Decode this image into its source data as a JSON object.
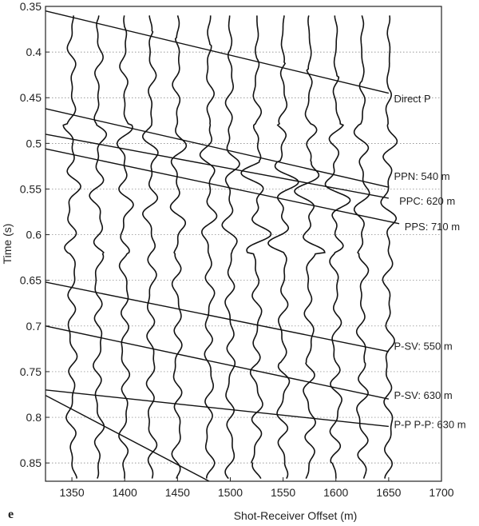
{
  "chart_data": {
    "type": "line",
    "title": "",
    "panel_label": "e",
    "xlabel": "Shot-Receiver Offset (m)",
    "ylabel": "Time (s)",
    "xlim": [
      1325,
      1700
    ],
    "ylim": [
      0.35,
      0.87
    ],
    "y_inverted": true,
    "x_ticks": [
      1350,
      1400,
      1450,
      1500,
      1550,
      1600,
      1650,
      1700
    ],
    "y_ticks": [
      0.35,
      0.4,
      0.45,
      0.5,
      0.55,
      0.6,
      0.65,
      0.7,
      0.75,
      0.8,
      0.85
    ],
    "y_tick_labels": [
      "0.35",
      "0.4",
      "0.45",
      "0.5",
      "0.55",
      "0.6",
      "0.65",
      "0.7",
      "0.75",
      "0.8",
      "0.85"
    ],
    "grid": "horizontal dotted",
    "trace_offsets": [
      1350,
      1375,
      1400,
      1425,
      1450,
      1480,
      1500,
      1525,
      1550,
      1575,
      1600,
      1625,
      1650
    ],
    "annotations": [
      {
        "text": "Direct P",
        "x": 1655,
        "y": 0.455
      },
      {
        "text": "PPN: 540 m",
        "x": 1655,
        "y": 0.54
      },
      {
        "text": "PPC: 620 m",
        "x": 1660,
        "y": 0.567
      },
      {
        "text": "PPS: 710 m",
        "x": 1665,
        "y": 0.595
      },
      {
        "text": "P-SV: 550 m",
        "x": 1655,
        "y": 0.726
      },
      {
        "text": "P-SV: 630 m",
        "x": 1655,
        "y": 0.78
      },
      {
        "text": "P-P P-P: 630 m",
        "x": 1655,
        "y": 0.812
      }
    ],
    "series": [
      {
        "x": [
          1325,
          1650
        ],
        "y": [
          0.355,
          0.445
        ]
      },
      {
        "x": [
          1325,
          1650
        ],
        "y": [
          0.462,
          0.548
        ]
      },
      {
        "x": [
          1325,
          1650
        ],
        "y": [
          0.49,
          0.56
        ]
      },
      {
        "x": [
          1325,
          1660
        ],
        "y": [
          0.506,
          0.588
        ]
      },
      {
        "x": [
          1325,
          1650
        ],
        "y": [
          0.652,
          0.728
        ]
      },
      {
        "x": [
          1325,
          1650
        ],
        "y": [
          0.7,
          0.78
        ]
      },
      {
        "x": [
          1325,
          1650
        ],
        "y": [
          0.77,
          0.81
        ]
      },
      {
        "x": [
          1325,
          1480
        ],
        "y": [
          0.776,
          0.87
        ]
      }
    ]
  }
}
